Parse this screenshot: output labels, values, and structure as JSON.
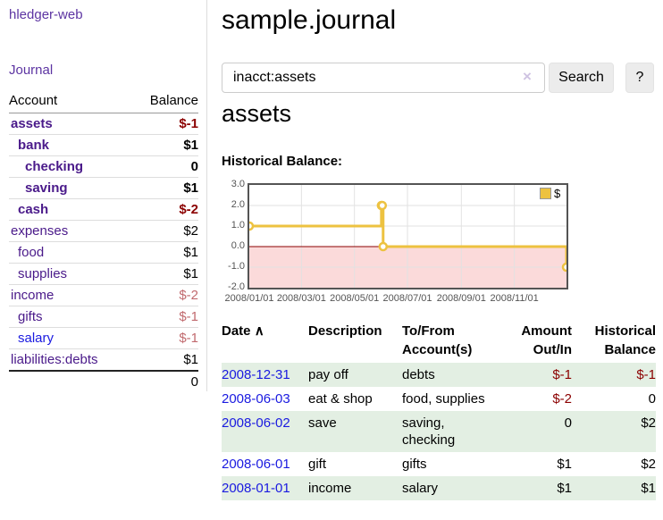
{
  "app": {
    "brand": "hledger-web"
  },
  "sidebar": {
    "journal_link": "Journal",
    "headers": {
      "account": "Account",
      "balance": "Balance"
    },
    "accounts": [
      {
        "name": "assets",
        "balance": "$-1"
      },
      {
        "name": "bank",
        "balance": "$1"
      },
      {
        "name": "checking",
        "balance": "0"
      },
      {
        "name": "saving",
        "balance": "$1"
      },
      {
        "name": "cash",
        "balance": "$-2"
      },
      {
        "name": "expenses",
        "balance": "$2"
      },
      {
        "name": "food",
        "balance": "$1"
      },
      {
        "name": "supplies",
        "balance": "$1"
      },
      {
        "name": "income",
        "balance": "$-2"
      },
      {
        "name": "gifts",
        "balance": "$-1"
      },
      {
        "name": "salary",
        "balance": "$-1"
      },
      {
        "name": "liabilities:debts",
        "balance": "$1"
      }
    ],
    "total": "0"
  },
  "header": {
    "title": "sample.journal"
  },
  "search": {
    "value": "inacct:assets",
    "clear_icon": "×",
    "search_button": "Search",
    "help_button": "?"
  },
  "account_page": {
    "heading": "assets",
    "chart_title": "Historical Balance:"
  },
  "chart_data": {
    "type": "line",
    "step": true,
    "title": "Historical Balance:",
    "series": [
      {
        "name": "$",
        "color": "#EDC240",
        "points": [
          [
            "2008-01-01",
            1
          ],
          [
            "2008-06-01",
            2
          ],
          [
            "2008-06-02",
            2
          ],
          [
            "2008-06-03",
            0
          ],
          [
            "2008-12-31",
            -1
          ]
        ]
      }
    ],
    "x_range": [
      "2008-01-01",
      "2008-12-31"
    ],
    "x_tick_labels": [
      "2008/01/01",
      "2008/03/01",
      "2008/05/01",
      "2008/07/01",
      "2008/09/01",
      "2008/11/01"
    ],
    "y_ticks": [
      3,
      2,
      1,
      0,
      -1,
      -2
    ],
    "y_tick_labels": [
      "3.0",
      "2.0",
      "1.0",
      "0.0",
      "-1.0",
      "-2.0"
    ],
    "ylim": [
      -2,
      3
    ],
    "grid": true,
    "legend_position": "top-right",
    "colors": {
      "series": "#EDC240",
      "negative_fill": "#fbdada",
      "zero_line": "#8b0000",
      "grid": "#e2e2e2",
      "border": "#545454",
      "tick_text": "#545454"
    }
  },
  "register": {
    "headers": {
      "date": "Date",
      "sort_icon": "∧",
      "description": "Description",
      "accounts": "To/From Account(s)",
      "amount": "Amount Out/In",
      "balance": "Historical Balance"
    },
    "rows": [
      {
        "date": "2008-12-31",
        "description": "pay off",
        "accounts": "debts",
        "amount": "$-1",
        "balance": "$-1"
      },
      {
        "date": "2008-06-03",
        "description": "eat & shop",
        "accounts": "food, supplies",
        "amount": "$-2",
        "balance": "0"
      },
      {
        "date": "2008-06-02",
        "description": "save",
        "accounts": "saving, checking",
        "amount": "0",
        "balance": "$2"
      },
      {
        "date": "2008-06-01",
        "description": "gift",
        "accounts": "gifts",
        "amount": "$1",
        "balance": "$2"
      },
      {
        "date": "2008-01-01",
        "description": "income",
        "accounts": "salary",
        "amount": "$1",
        "balance": "$1"
      }
    ]
  },
  "colors": {
    "link_purple": "#5c34a2",
    "account_purple": "#4a1a8a",
    "link_blue": "#1a1ae0",
    "negative_strong": "#8b0000",
    "negative_soft": "#c16a6e",
    "row_stripe_green": "#e3efe3",
    "series_gold": "#EDC240",
    "button_gray": "#ececec"
  }
}
